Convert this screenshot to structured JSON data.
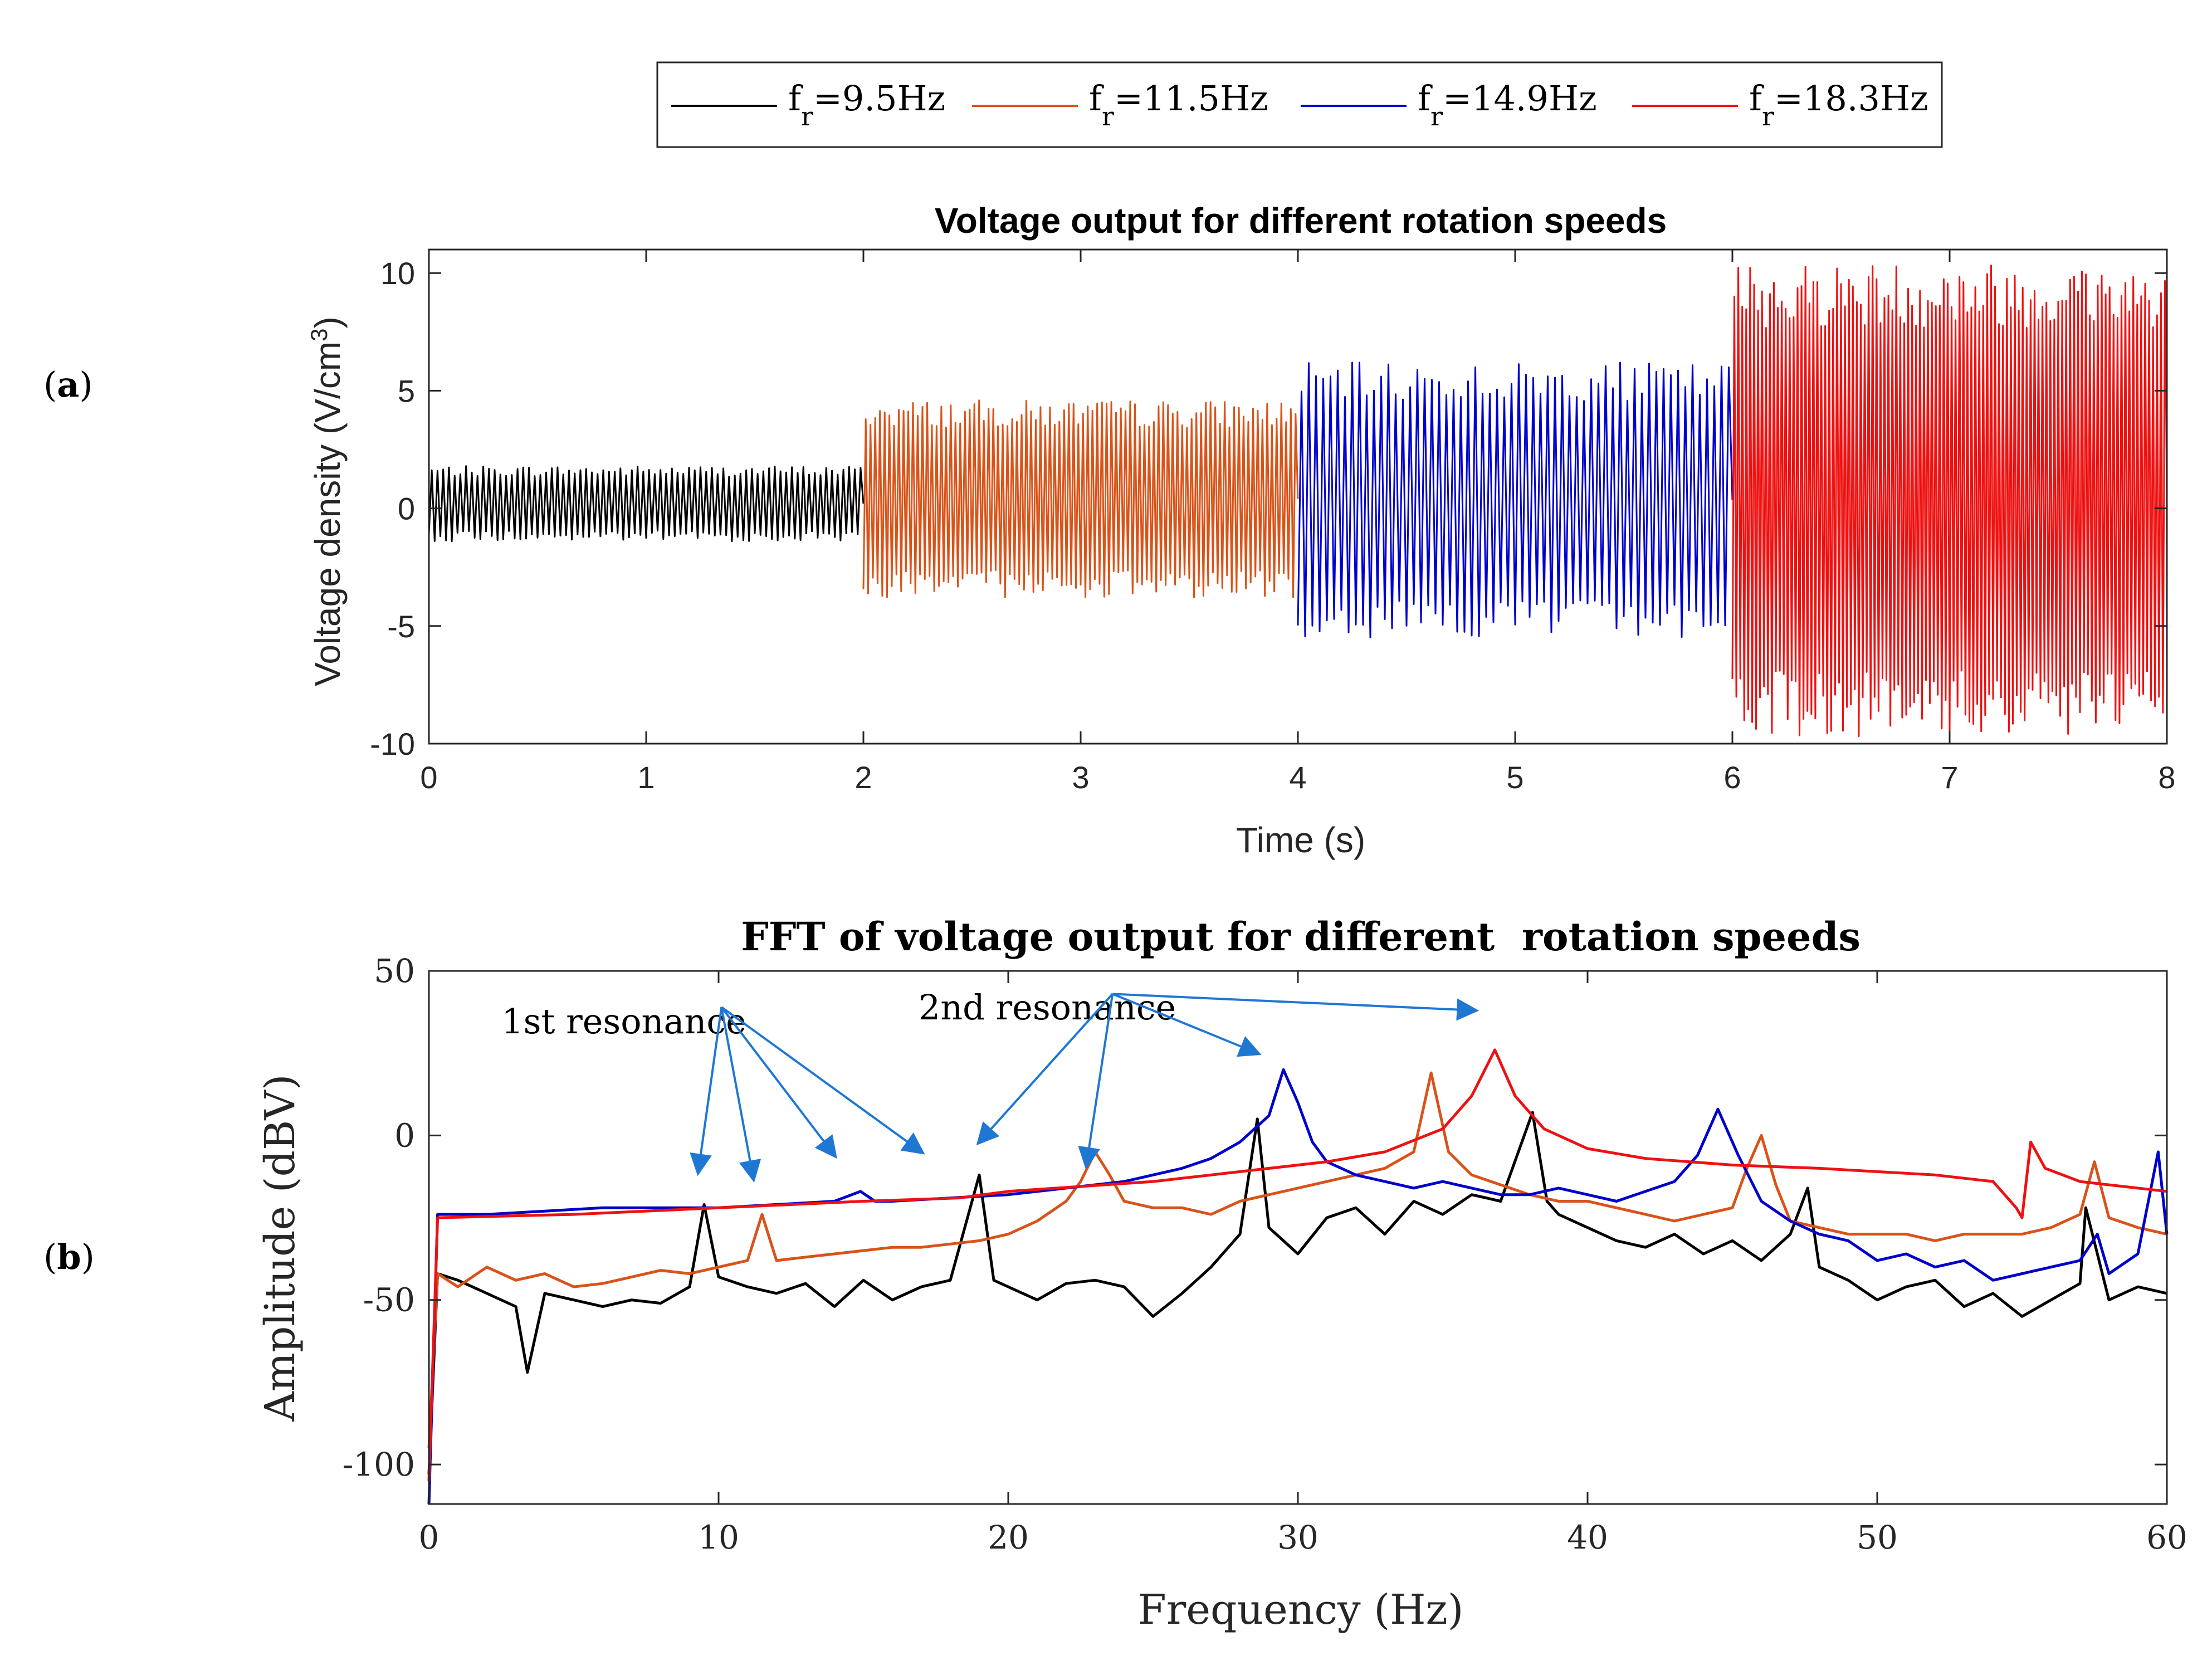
{
  "legend": {
    "entries": [
      {
        "prefix": "f",
        "sub": "r",
        "rest": "=9.5Hz",
        "color": "#000000"
      },
      {
        "prefix": "f",
        "sub": "r",
        "rest": "=11.5Hz",
        "color": "#d95319"
      },
      {
        "prefix": "f",
        "sub": "r",
        "rest": "=14.9Hz",
        "color": "#0000cc"
      },
      {
        "prefix": "f",
        "sub": "r",
        "rest": "=18.3Hz",
        "color": "#ee1111"
      }
    ]
  },
  "panel_labels": {
    "a_open": "(",
    "a": "a",
    "a_close": ")",
    "b_open": "(",
    "b": "b",
    "b_close": ")"
  },
  "colors": {
    "axis": "#262626",
    "annotation": "#1f77d4"
  },
  "chart_data": [
    {
      "type": "line",
      "title": "Voltage output for different rotation speeds",
      "xlabel": "Time (s)",
      "ylabel_main": "Voltage density (V/cm",
      "ylabel_sup": "3",
      "ylabel_end": ")",
      "xlim": [
        0,
        8
      ],
      "ylim": [
        -10,
        11
      ],
      "xticks": [
        0,
        1,
        2,
        3,
        4,
        5,
        6,
        7,
        8
      ],
      "yticks": [
        -10,
        -5,
        0,
        5,
        10
      ],
      "xtick_labels": [
        "0",
        "1",
        "2",
        "3",
        "4",
        "5",
        "6",
        "7",
        "8"
      ],
      "ytick_labels": [
        "-10",
        "-5",
        "0",
        "5",
        "10"
      ],
      "series": [
        {
          "name": "fr=9.5Hz",
          "t_start": 0,
          "t_end": 2,
          "amp_min": -1.4,
          "amp_max": 1.8,
          "osc_freq": 38,
          "color": "#000000"
        },
        {
          "name": "fr=11.5Hz",
          "t_start": 2,
          "t_end": 4,
          "amp_min": -3.8,
          "amp_max": 4.6,
          "osc_freq": 46,
          "color": "#d95319"
        },
        {
          "name": "fr=14.9Hz",
          "t_start": 4,
          "t_end": 6,
          "amp_min": -5.5,
          "amp_max": 6.2,
          "osc_freq": 30,
          "color": "#0000cc"
        },
        {
          "name": "fr=18.3Hz",
          "t_start": 6,
          "t_end": 8,
          "amp_min": -9.7,
          "amp_max": 10.5,
          "osc_freq": 55,
          "color": "#ee1111"
        }
      ]
    },
    {
      "type": "line",
      "title": "FFT of voltage output for different  rotation speeds",
      "xlabel": "Frequency (Hz)",
      "ylabel": "Amplitude (dBV)",
      "xlim": [
        0,
        60
      ],
      "ylim": [
        -112,
        50
      ],
      "xticks": [
        0,
        10,
        20,
        30,
        40,
        50,
        60
      ],
      "yticks": [
        -100,
        -50,
        0,
        50
      ],
      "xtick_labels": [
        "0",
        "10",
        "20",
        "30",
        "40",
        "50",
        "60"
      ],
      "ytick_labels": [
        "-100",
        "-50",
        "0",
        "50"
      ],
      "annotations": [
        {
          "text": "1st resonance",
          "at": [
            10.1,
            39
          ],
          "targets": [
            [
              9.3,
              -11
            ],
            [
              11.2,
              -13
            ],
            [
              14,
              -6
            ],
            [
              17,
              -5
            ]
          ]
        },
        {
          "text": "2nd resonance",
          "at": [
            23.6,
            43
          ],
          "targets": [
            [
              19,
              -2
            ],
            [
              22.7,
              -9
            ],
            [
              28.6,
              25
            ],
            [
              36.1,
              38
            ]
          ]
        }
      ],
      "series": [
        {
          "name": "fr=9.5Hz",
          "color": "#000000",
          "x": [
            0,
            0.3,
            1,
            2,
            3,
            3.4,
            4,
            5,
            6,
            7,
            8,
            9,
            9.5,
            10,
            11,
            12,
            13,
            14,
            15,
            16,
            17,
            18,
            19,
            19.5,
            20,
            21,
            22,
            23,
            24,
            25,
            26,
            27,
            28,
            28.6,
            29,
            30,
            31,
            32,
            33,
            34,
            35,
            36,
            37,
            38.1,
            38.6,
            39,
            40,
            41,
            42,
            43,
            44,
            45,
            46,
            47,
            47.6,
            48,
            49,
            50,
            51,
            52,
            53,
            54,
            55,
            56,
            57,
            57.2,
            58,
            59,
            60
          ],
          "y": [
            -103,
            -42,
            -44,
            -48,
            -52,
            -72,
            -48,
            -50,
            -52,
            -50,
            -51,
            -46,
            -21,
            -43,
            -46,
            -48,
            -45,
            -52,
            -44,
            -50,
            -46,
            -44,
            -12,
            -44,
            -46,
            -50,
            -45,
            -44,
            -46,
            -55,
            -48,
            -40,
            -30,
            5,
            -28,
            -36,
            -25,
            -22,
            -30,
            -20,
            -24,
            -18,
            -20,
            7,
            -20,
            -24,
            -28,
            -32,
            -34,
            -30,
            -36,
            -32,
            -38,
            -30,
            -16,
            -40,
            -44,
            -50,
            -46,
            -44,
            -52,
            -48,
            -55,
            -50,
            -45,
            -22,
            -50,
            -46,
            -48
          ]
        },
        {
          "name": "fr=11.5Hz",
          "color": "#d95319",
          "x": [
            0,
            0.3,
            1,
            2,
            3,
            4,
            5,
            6,
            7,
            8,
            9,
            10,
            11,
            11.5,
            12,
            13,
            14,
            15,
            16,
            17,
            18,
            19,
            20,
            21,
            22,
            22.5,
            23,
            23.5,
            24,
            25,
            26,
            27,
            28,
            29,
            30,
            31,
            32,
            33,
            34,
            34.6,
            35.2,
            36,
            37,
            38,
            39,
            40,
            41,
            42,
            43,
            44,
            45,
            45.5,
            46,
            46.5,
            47,
            48,
            49,
            50,
            51,
            52,
            53,
            54,
            55,
            56,
            57,
            57.5,
            58,
            59,
            60
          ],
          "y": [
            -95,
            -42,
            -46,
            -40,
            -44,
            -42,
            -46,
            -45,
            -43,
            -41,
            -42,
            -40,
            -38,
            -24,
            -38,
            -37,
            -36,
            -35,
            -34,
            -34,
            -33,
            -32,
            -30,
            -26,
            -20,
            -14,
            -5,
            -12,
            -20,
            -22,
            -22,
            -24,
            -20,
            -18,
            -16,
            -14,
            -12,
            -10,
            -5,
            19,
            -5,
            -12,
            -15,
            -18,
            -20,
            -20,
            -22,
            -24,
            -26,
            -24,
            -22,
            -10,
            0,
            -15,
            -26,
            -28,
            -30,
            -30,
            -30,
            -32,
            -30,
            -30,
            -30,
            -28,
            -24,
            -8,
            -25,
            -28,
            -30
          ]
        },
        {
          "name": "fr=14.9Hz",
          "color": "#0000cc",
          "x": [
            0,
            0.3,
            2,
            4,
            6,
            8,
            10,
            12,
            14,
            14.9,
            15.4,
            16,
            18,
            20,
            22,
            24,
            26,
            27,
            28,
            29,
            29.5,
            30,
            30.5,
            31,
            32,
            33,
            34,
            35,
            36,
            37,
            38,
            39,
            40,
            41,
            42,
            43,
            43.8,
            44.5,
            45.2,
            46,
            47,
            48,
            49,
            50,
            51,
            52,
            53,
            54,
            55,
            56,
            57,
            57.6,
            58,
            59,
            59.7,
            60
          ],
          "y": [
            -112,
            -24,
            -24,
            -23,
            -22,
            -22,
            -22,
            -21,
            -20,
            -17,
            -20,
            -20,
            -19,
            -18,
            -16,
            -14,
            -10,
            -7,
            -2,
            6,
            20,
            10,
            -2,
            -8,
            -12,
            -14,
            -16,
            -14,
            -16,
            -18,
            -18,
            -16,
            -18,
            -20,
            -17,
            -14,
            -6,
            8,
            -6,
            -20,
            -26,
            -30,
            -32,
            -38,
            -36,
            -40,
            -38,
            -44,
            -42,
            -40,
            -38,
            -30,
            -42,
            -36,
            -5,
            -30
          ]
        },
        {
          "name": "fr=18.3Hz",
          "color": "#ee1111",
          "x": [
            0,
            0.3,
            5,
            10,
            15,
            18.3,
            20,
            25,
            28,
            31,
            33,
            35,
            36,
            36.8,
            37.5,
            38.5,
            40,
            42,
            45,
            48,
            50,
            52,
            54,
            54.8,
            55,
            55.3,
            55.8,
            57,
            60
          ],
          "y": [
            -105,
            -25,
            -24,
            -22,
            -20,
            -19,
            -17,
            -14,
            -11,
            -8,
            -5,
            2,
            12,
            26,
            12,
            2,
            -4,
            -7,
            -9,
            -10,
            -11,
            -12,
            -14,
            -22,
            -25,
            -2,
            -10,
            -14,
            -17
          ]
        }
      ]
    }
  ]
}
